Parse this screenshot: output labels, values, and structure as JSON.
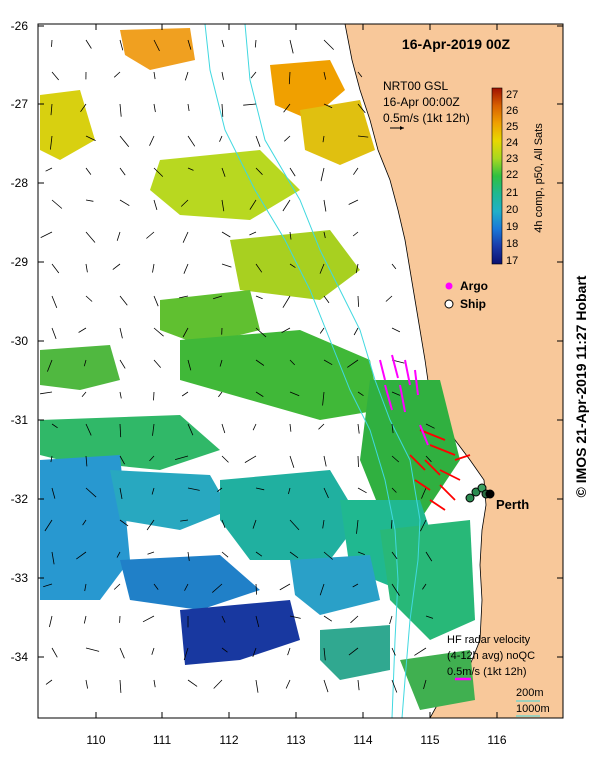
{
  "map": {
    "title": "16-Apr-2019 00Z",
    "product": {
      "line1": "NRT00 GSL",
      "line2": "16-Apr 00:00Z",
      "line3": "0.5m/s (1kt 12h)"
    },
    "colorbar": {
      "label": "4h comp, p50, All Sats",
      "ticks": [
        "27",
        "26",
        "25",
        "24",
        "23",
        "22",
        "21",
        "20",
        "19",
        "18",
        "17"
      ],
      "min": 17,
      "max": 27
    },
    "legend": {
      "argo": "Argo",
      "ship": "Ship"
    },
    "city": "Perth",
    "hf_radar": {
      "line1": "HF radar velocity",
      "line2": "(4-12h avg) noQC",
      "line3": "0.5m/s (1kt 12h)"
    },
    "isobaths": {
      "shallow": "200m",
      "deep": "1000m"
    },
    "lat_ticks": [
      "-26",
      "-27",
      "-28",
      "-29",
      "-30",
      "-31",
      "-32",
      "-33",
      "-34"
    ],
    "lon_ticks": [
      "110",
      "111",
      "112",
      "113",
      "114",
      "115",
      "116"
    ],
    "credit": "© IMOS 21-Apr-2019 11:27 Hobart"
  },
  "colors": {
    "land": "#f8c89a",
    "frame": "#000000",
    "isobath": "#40d8e0",
    "argo": "#ff00ff",
    "hf_vector": "#ff0000"
  },
  "icons": {
    "argo": "magenta-dot",
    "ship": "open-circle"
  }
}
